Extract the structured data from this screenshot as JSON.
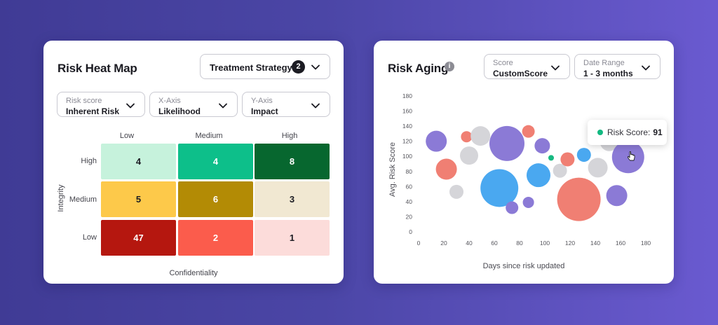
{
  "heatmap": {
    "title": "Risk Heat Map",
    "treatment_strategy": {
      "label": "Treatment Strategy",
      "count": "2"
    },
    "filters": [
      {
        "label": "Risk score",
        "value": "Inherent Risk"
      },
      {
        "label": "X-Axis",
        "value": "Likelihood"
      },
      {
        "label": "Y-Axis",
        "value": "Impact"
      }
    ],
    "columns": [
      "Low",
      "Medium",
      "High"
    ],
    "rows": [
      {
        "label": "High",
        "cells": [
          {
            "value": "4",
            "bg": "#c6f2dc",
            "fg": "#1b1b22"
          },
          {
            "value": "4",
            "bg": "#0dbf8a",
            "fg": "#ffffff"
          },
          {
            "value": "8",
            "bg": "#07672f",
            "fg": "#ffffff"
          }
        ]
      },
      {
        "label": "Medium",
        "cells": [
          {
            "value": "5",
            "bg": "#fdc94a",
            "fg": "#1b1b22"
          },
          {
            "value": "6",
            "bg": "#b38b05",
            "fg": "#ffffff"
          },
          {
            "value": "3",
            "bg": "#f1e8d2",
            "fg": "#1b1b22"
          }
        ]
      },
      {
        "label": "Low",
        "cells": [
          {
            "value": "47",
            "bg": "#b5170f",
            "fg": "#ffffff"
          },
          {
            "value": "2",
            "bg": "#fb5c4c",
            "fg": "#ffffff"
          },
          {
            "value": "1",
            "bg": "#fcdcda",
            "fg": "#1b1b22"
          }
        ]
      }
    ],
    "y_axis_title": "Integrity",
    "x_axis_title": "Confidentiality"
  },
  "aging": {
    "title": "Risk Aging",
    "info_icon": "info-icon",
    "filters": [
      {
        "label": "Score",
        "value": "CustomScore"
      },
      {
        "label": "Date Range",
        "value": "1 - 3 months"
      }
    ],
    "tooltip": {
      "label": "Risk Score:",
      "value": "91"
    }
  },
  "chart_data": {
    "type": "scatter",
    "xlabel": "Days since risk updated",
    "ylabel": "Avg. Risk Score",
    "xlim": [
      0,
      180
    ],
    "ylim": [
      0,
      180
    ],
    "xticks": [
      0,
      20,
      40,
      60,
      80,
      100,
      120,
      140,
      160,
      180
    ],
    "yticks": [
      0,
      20,
      40,
      60,
      80,
      100,
      120,
      140,
      160,
      180
    ],
    "colors": {
      "purple": "#8b7ad6",
      "red": "#f07f73",
      "grey": "#d5d5d9",
      "blue": "#4aa8f0",
      "green": "#18b981"
    },
    "points": [
      {
        "x": 14,
        "y": 120,
        "r": 15,
        "c": "purple"
      },
      {
        "x": 22,
        "y": 83,
        "r": 15,
        "c": "red"
      },
      {
        "x": 30,
        "y": 53,
        "r": 10,
        "c": "grey"
      },
      {
        "x": 38,
        "y": 126,
        "r": 8,
        "c": "red"
      },
      {
        "x": 40,
        "y": 101,
        "r": 13,
        "c": "grey"
      },
      {
        "x": 49,
        "y": 127,
        "r": 14,
        "c": "grey"
      },
      {
        "x": 64,
        "y": 58,
        "r": 27,
        "c": "blue"
      },
      {
        "x": 70,
        "y": 117,
        "r": 25,
        "c": "purple"
      },
      {
        "x": 74,
        "y": 32,
        "r": 9,
        "c": "purple"
      },
      {
        "x": 87,
        "y": 39,
        "r": 8,
        "c": "purple"
      },
      {
        "x": 87,
        "y": 133,
        "r": 9,
        "c": "red"
      },
      {
        "x": 95,
        "y": 75,
        "r": 17,
        "c": "blue"
      },
      {
        "x": 98,
        "y": 114,
        "r": 11,
        "c": "purple"
      },
      {
        "x": 105,
        "y": 98,
        "r": 4,
        "c": "green"
      },
      {
        "x": 112,
        "y": 81,
        "r": 10,
        "c": "grey"
      },
      {
        "x": 118,
        "y": 96,
        "r": 10,
        "c": "red"
      },
      {
        "x": 127,
        "y": 43,
        "r": 31,
        "c": "red"
      },
      {
        "x": 131,
        "y": 102,
        "r": 10,
        "c": "blue"
      },
      {
        "x": 142,
        "y": 85,
        "r": 14,
        "c": "grey"
      },
      {
        "x": 151,
        "y": 119,
        "r": 13,
        "c": "grey"
      },
      {
        "x": 157,
        "y": 48,
        "r": 15,
        "c": "purple"
      },
      {
        "x": 166,
        "y": 99,
        "r": 23,
        "c": "purple"
      }
    ]
  }
}
